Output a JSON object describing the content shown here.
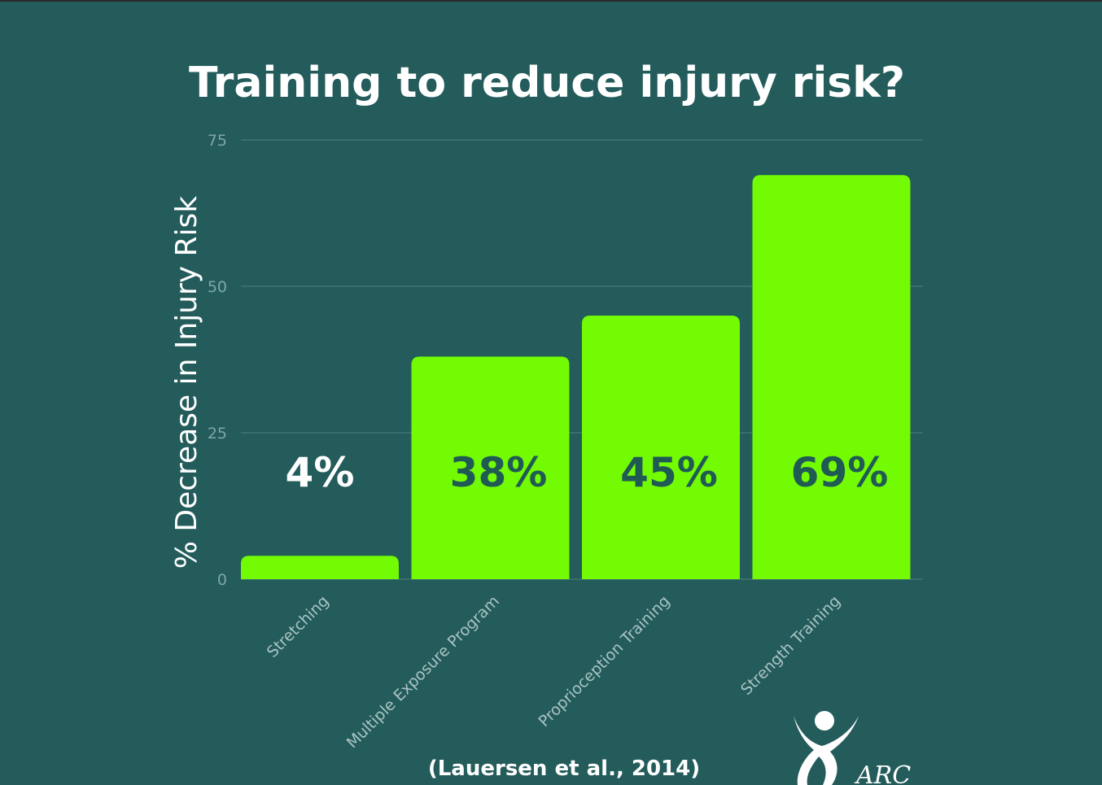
{
  "chart_data": {
    "type": "bar",
    "title": "Training to reduce injury risk?",
    "ylabel": "% Decrease in Injury Risk",
    "xlabel": "",
    "categories": [
      "Stretching",
      "Multiple Exposure Program",
      "Proprioception Training",
      "Strength Training"
    ],
    "values": [
      4,
      38,
      45,
      69
    ],
    "data_labels": [
      "4%",
      "38%",
      "45%",
      "69%"
    ],
    "yticks": [
      "0",
      "25",
      "50",
      "75"
    ],
    "ylim": [
      0,
      75
    ],
    "grid": true,
    "legend": "none",
    "colors": {
      "background": "#235c5b",
      "bar": "#73fb03",
      "label_on_bar": "#1f5a55",
      "label_above_bar": "#ffffff"
    }
  },
  "citation": "(Lauersen et al., 2014)",
  "logo": {
    "text": "ARC",
    "icon": "person-arms-raised-logo"
  }
}
